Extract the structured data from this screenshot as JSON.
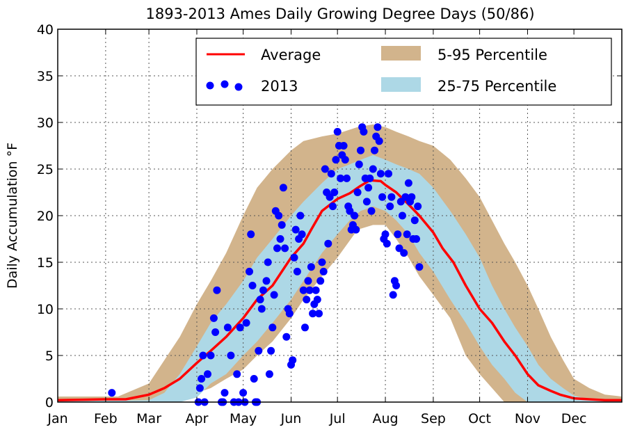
{
  "chart_data": {
    "type": "line",
    "title": "1893-2013 Ames Daily Growing Degree Days (50/86)",
    "ylabel": "Daily Accumulation °F",
    "xlabel": "",
    "x_range_day_of_year": [
      1,
      366
    ],
    "ylim": [
      0,
      40
    ],
    "yticks": [
      "0",
      "5",
      "10",
      "15",
      "20",
      "25",
      "30",
      "35",
      "40"
    ],
    "xticks": [
      {
        "label": "Jan",
        "day": 1
      },
      {
        "label": "Feb",
        "day": 32
      },
      {
        "label": "Mar",
        "day": 60
      },
      {
        "label": "Apr",
        "day": 91
      },
      {
        "label": "May",
        "day": 121
      },
      {
        "label": "Jun",
        "day": 152
      },
      {
        "label": "Jul",
        "day": 182
      },
      {
        "label": "Aug",
        "day": 213
      },
      {
        "label": "Sep",
        "day": 244
      },
      {
        "label": "Oct",
        "day": 274
      },
      {
        "label": "Nov",
        "day": 305
      },
      {
        "label": "Dec",
        "day": 335
      }
    ],
    "grid": true,
    "legend_position": "top-right",
    "colors": {
      "average": "#ff0000",
      "obs2013": "#0000ff",
      "p5_95": "#d2b48c",
      "p25_75": "#add8e6"
    },
    "series": [
      {
        "name": "Average",
        "kind": "line",
        "points": [
          [
            1,
            0.2
          ],
          [
            32,
            0.3
          ],
          [
            45,
            0.3
          ],
          [
            60,
            0.8
          ],
          [
            70,
            1.5
          ],
          [
            80,
            2.5
          ],
          [
            91,
            4.2
          ],
          [
            100,
            5.5
          ],
          [
            110,
            7
          ],
          [
            121,
            9
          ],
          [
            130,
            11
          ],
          [
            140,
            12.5
          ],
          [
            152,
            15.5
          ],
          [
            160,
            17
          ],
          [
            165,
            18.5
          ],
          [
            172,
            20.5
          ],
          [
            182,
            21.8
          ],
          [
            190,
            22.4
          ],
          [
            197,
            23.2
          ],
          [
            203,
            23.8
          ],
          [
            210,
            23.7
          ],
          [
            213,
            23.3
          ],
          [
            220,
            22.5
          ],
          [
            228,
            21.2
          ],
          [
            235,
            20
          ],
          [
            244,
            18.2
          ],
          [
            250,
            16.5
          ],
          [
            257,
            15
          ],
          [
            265,
            12.5
          ],
          [
            274,
            10
          ],
          [
            282,
            8.5
          ],
          [
            290,
            6.5
          ],
          [
            297,
            5
          ],
          [
            305,
            3
          ],
          [
            312,
            1.8
          ],
          [
            320,
            1.2
          ],
          [
            326,
            0.8
          ],
          [
            335,
            0.4
          ],
          [
            345,
            0.3
          ],
          [
            355,
            0.2
          ],
          [
            366,
            0.2
          ]
        ]
      },
      {
        "name": "5-95 Percentile",
        "kind": "band",
        "points": [
          [
            1,
            0,
            0.6
          ],
          [
            40,
            0,
            0.6
          ],
          [
            60,
            0,
            2
          ],
          [
            70,
            0,
            4.5
          ],
          [
            80,
            0,
            7
          ],
          [
            91,
            1,
            10.5
          ],
          [
            100,
            1.5,
            13
          ],
          [
            110,
            2.5,
            16
          ],
          [
            121,
            3.5,
            20
          ],
          [
            130,
            5,
            23
          ],
          [
            140,
            6.5,
            25
          ],
          [
            152,
            9,
            27
          ],
          [
            160,
            11,
            28
          ],
          [
            172,
            13.5,
            28.5
          ],
          [
            182,
            15.5,
            28.8
          ],
          [
            195,
            18.5,
            29.5
          ],
          [
            205,
            19,
            29.8
          ],
          [
            213,
            19,
            29.5
          ],
          [
            220,
            17.5,
            29
          ],
          [
            228,
            15.5,
            28.5
          ],
          [
            235,
            13.5,
            28
          ],
          [
            244,
            11.5,
            27.5
          ],
          [
            255,
            9,
            26
          ],
          [
            265,
            5,
            24
          ],
          [
            274,
            3,
            22
          ],
          [
            282,
            1.5,
            19.5
          ],
          [
            290,
            0,
            17
          ],
          [
            297,
            0,
            15
          ],
          [
            305,
            0,
            12.5
          ],
          [
            312,
            0,
            10
          ],
          [
            320,
            0,
            7
          ],
          [
            328,
            0,
            4.5
          ],
          [
            335,
            0,
            2.5
          ],
          [
            345,
            0,
            1.5
          ],
          [
            355,
            0,
            0.8
          ],
          [
            366,
            0,
            0.6
          ]
        ]
      },
      {
        "name": "25-75 Percentile",
        "kind": "band",
        "points": [
          [
            1,
            0,
            0.1
          ],
          [
            60,
            0,
            0.2
          ],
          [
            70,
            0,
            1
          ],
          [
            80,
            0,
            3
          ],
          [
            91,
            0.5,
            6
          ],
          [
            100,
            2,
            8.5
          ],
          [
            110,
            3,
            10.5
          ],
          [
            121,
            5,
            13
          ],
          [
            130,
            6.5,
            15.5
          ],
          [
            140,
            8.5,
            17.5
          ],
          [
            152,
            11,
            20
          ],
          [
            160,
            13,
            21.5
          ],
          [
            172,
            16,
            23.5
          ],
          [
            182,
            18,
            25
          ],
          [
            190,
            19.5,
            25.5
          ],
          [
            197,
            20.5,
            26
          ],
          [
            205,
            21,
            26.5
          ],
          [
            213,
            20.5,
            26
          ],
          [
            220,
            19.5,
            25.5
          ],
          [
            228,
            18,
            25
          ],
          [
            235,
            16,
            24.5
          ],
          [
            244,
            14,
            23
          ],
          [
            255,
            11,
            20.5
          ],
          [
            265,
            8.5,
            18
          ],
          [
            274,
            6,
            15.5
          ],
          [
            282,
            4,
            12.5
          ],
          [
            290,
            2.5,
            10
          ],
          [
            297,
            1,
            8
          ],
          [
            305,
            0,
            6
          ],
          [
            312,
            0,
            4
          ],
          [
            320,
            0,
            2.5
          ],
          [
            328,
            0,
            1.5
          ],
          [
            335,
            0,
            0.7
          ],
          [
            345,
            0,
            0.3
          ],
          [
            366,
            0,
            0.1
          ]
        ]
      },
      {
        "name": "2013",
        "kind": "scatter",
        "points": [
          [
            36,
            1
          ],
          [
            92,
            0
          ],
          [
            93,
            1.5
          ],
          [
            94,
            2.5
          ],
          [
            95,
            5
          ],
          [
            96,
            0
          ],
          [
            98,
            3
          ],
          [
            100,
            5
          ],
          [
            102,
            9
          ],
          [
            103,
            7.5
          ],
          [
            104,
            12
          ],
          [
            107,
            0
          ],
          [
            108,
            0
          ],
          [
            109,
            1
          ],
          [
            111,
            8
          ],
          [
            113,
            5
          ],
          [
            115,
            0
          ],
          [
            117,
            3
          ],
          [
            118,
            0
          ],
          [
            119,
            8
          ],
          [
            121,
            1
          ],
          [
            122,
            0
          ],
          [
            123,
            8.5
          ],
          [
            125,
            14
          ],
          [
            126,
            18
          ],
          [
            127,
            12.5
          ],
          [
            128,
            2.5
          ],
          [
            129,
            0
          ],
          [
            130,
            0
          ],
          [
            131,
            5.5
          ],
          [
            132,
            11
          ],
          [
            133,
            10
          ],
          [
            134,
            12
          ],
          [
            136,
            13
          ],
          [
            137,
            15
          ],
          [
            138,
            3
          ],
          [
            139,
            5.5
          ],
          [
            140,
            8
          ],
          [
            141,
            11.5
          ],
          [
            142,
            20.5
          ],
          [
            143,
            16.5
          ],
          [
            144,
            20
          ],
          [
            145,
            17.5
          ],
          [
            146,
            19
          ],
          [
            147,
            23
          ],
          [
            148,
            16.5
          ],
          [
            149,
            7
          ],
          [
            150,
            10
          ],
          [
            151,
            9.5
          ],
          [
            152,
            4
          ],
          [
            153,
            4.5
          ],
          [
            154,
            15.5
          ],
          [
            155,
            18.5
          ],
          [
            156,
            14
          ],
          [
            157,
            17.5
          ],
          [
            158,
            20
          ],
          [
            159,
            18
          ],
          [
            160,
            12
          ],
          [
            161,
            8
          ],
          [
            162,
            11
          ],
          [
            163,
            13
          ],
          [
            164,
            12
          ],
          [
            165,
            14.5
          ],
          [
            166,
            9.5
          ],
          [
            167,
            10.5
          ],
          [
            168,
            12
          ],
          [
            169,
            11
          ],
          [
            170,
            9.5
          ],
          [
            171,
            13
          ],
          [
            172,
            15
          ],
          [
            173,
            14
          ],
          [
            174,
            25
          ],
          [
            175,
            22.5
          ],
          [
            176,
            17
          ],
          [
            177,
            22
          ],
          [
            178,
            24.5
          ],
          [
            179,
            21
          ],
          [
            180,
            22.5
          ],
          [
            181,
            26
          ],
          [
            182,
            29
          ],
          [
            183,
            27.5
          ],
          [
            184,
            24
          ],
          [
            185,
            26.5
          ],
          [
            186,
            27.5
          ],
          [
            187,
            26
          ],
          [
            188,
            24
          ],
          [
            189,
            21
          ],
          [
            190,
            20.5
          ],
          [
            191,
            18.5
          ],
          [
            192,
            19
          ],
          [
            193,
            20
          ],
          [
            194,
            18.5
          ],
          [
            195,
            22.5
          ],
          [
            196,
            25.5
          ],
          [
            197,
            27
          ],
          [
            198,
            29.5
          ],
          [
            199,
            29
          ],
          [
            200,
            24
          ],
          [
            201,
            21.5
          ],
          [
            202,
            23
          ],
          [
            203,
            24
          ],
          [
            204,
            20.5
          ],
          [
            205,
            25
          ],
          [
            206,
            27
          ],
          [
            207,
            28.5
          ],
          [
            208,
            29.5
          ],
          [
            209,
            28
          ],
          [
            210,
            24.5
          ],
          [
            211,
            22
          ],
          [
            212,
            17.5
          ],
          [
            213,
            18
          ],
          [
            214,
            17
          ],
          [
            215,
            24.5
          ],
          [
            216,
            21
          ],
          [
            217,
            22
          ],
          [
            218,
            11.5
          ],
          [
            219,
            13
          ],
          [
            220,
            12.5
          ],
          [
            221,
            18
          ],
          [
            222,
            16.5
          ],
          [
            223,
            21.5
          ],
          [
            224,
            20
          ],
          [
            225,
            16
          ],
          [
            226,
            22
          ],
          [
            227,
            18
          ],
          [
            228,
            23.5
          ],
          [
            229,
            21.5
          ],
          [
            230,
            22
          ],
          [
            231,
            17.5
          ],
          [
            232,
            19.5
          ],
          [
            233,
            17.5
          ],
          [
            234,
            21
          ],
          [
            235,
            14.5
          ]
        ]
      }
    ],
    "legend": [
      {
        "label": "Average",
        "symbol": "line"
      },
      {
        "label": "5-95 Percentile",
        "symbol": "patch"
      },
      {
        "label": "2013",
        "symbol": "dots"
      },
      {
        "label": "25-75 Percentile",
        "symbol": "patch"
      }
    ]
  }
}
